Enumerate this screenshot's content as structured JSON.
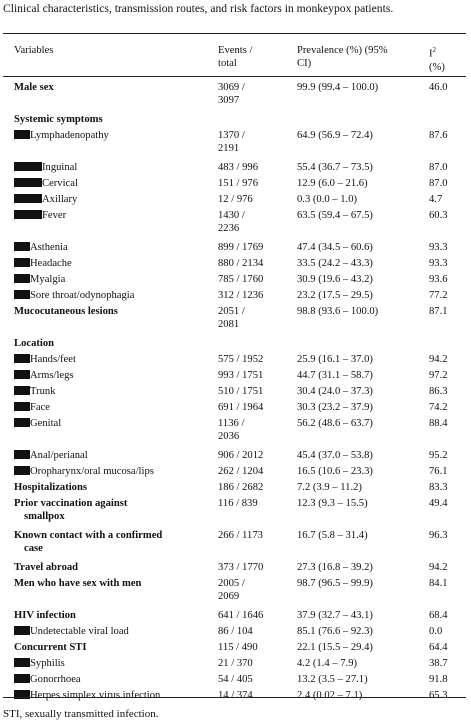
{
  "caption": "Clinical characteristics, transmission routes, and risk factors in monkeypox patients.",
  "header": {
    "variables": "Variables",
    "events_1": "Events /",
    "events_2": "total",
    "prev_1": "Prevalence (%) (95%",
    "prev_2": "CI)",
    "i2_base": "I",
    "i2_sup": "2",
    "i2_unit": "(%)"
  },
  "rows": [
    {
      "label": "Male sex",
      "events_1": "3069 /",
      "events_2": "3097",
      "prevalence": "99.9 (99.4 – 100.0)",
      "i2": "46.0",
      "style": "bold",
      "indent": 0
    },
    {
      "label": "Systemic symptoms",
      "events_1": "",
      "events_2": "",
      "prevalence": "",
      "i2": "",
      "style": "bold",
      "indent": 0
    },
    {
      "label": "Lymphadenopathy",
      "events_1": "1370 /",
      "events_2": "2191",
      "prevalence": "64.9 (56.9 – 72.4)",
      "i2": "87.6",
      "style": "normal",
      "indent": 1
    },
    {
      "label": "Inguinal",
      "events_1": "483 / 996",
      "events_2": "",
      "prevalence": "55.4 (36.7 – 73.5)",
      "i2": "87.0",
      "style": "normal",
      "indent": 2
    },
    {
      "label": "Cervical",
      "events_1": "151 / 976",
      "events_2": "",
      "prevalence": "12.9 (6.0 – 21.6)",
      "i2": "87.0",
      "style": "normal",
      "indent": 2
    },
    {
      "label": "Axillary",
      "events_1": "12 / 976",
      "events_2": "",
      "prevalence": "0.3 (0.0 – 1.0)",
      "i2": "4.7",
      "style": "normal",
      "indent": 2
    },
    {
      "label": "Fever",
      "events_1": "1430 /",
      "events_2": "2236",
      "prevalence": "63.5 (59.4 – 67.5)",
      "i2": "60.3",
      "style": "normal",
      "indent": 2
    },
    {
      "label": "Asthenia",
      "events_1": "899 / 1769",
      "events_2": "",
      "prevalence": "47.4 (34.5 – 60.6)",
      "i2": "93.3",
      "style": "normal",
      "indent": 1
    },
    {
      "label": "Headache",
      "events_1": "880 / 2134",
      "events_2": "",
      "prevalence": "33.5 (24.2 – 43.3)",
      "i2": "93.3",
      "style": "normal",
      "indent": 1
    },
    {
      "label": "Myalgia",
      "events_1": "785 / 1760",
      "events_2": "",
      "prevalence": "30.9 (19.6 – 43.2)",
      "i2": "93.6",
      "style": "normal",
      "indent": 1
    },
    {
      "label": "Sore throat/odynophagia",
      "events_1": "312 / 1236",
      "events_2": "",
      "prevalence": "23.2 (17.5 – 29.5)",
      "i2": "77.2",
      "style": "normal",
      "indent": 1
    },
    {
      "label": "Mucocutaneous lesions",
      "events_1": "2051 /",
      "events_2": "2081",
      "prevalence": "98.8 (93.6 – 100.0)",
      "i2": "87.1",
      "style": "bold",
      "indent": 0
    },
    {
      "label": "Location",
      "events_1": "",
      "events_2": "",
      "prevalence": "",
      "i2": "",
      "style": "bold",
      "indent": 0
    },
    {
      "label": "Hands/feet",
      "events_1": "575 / 1952",
      "events_2": "",
      "prevalence": "25.9 (16.1 – 37.0)",
      "i2": "94.2",
      "style": "normal",
      "indent": 1
    },
    {
      "label": "Arms/legs",
      "events_1": "993 / 1751",
      "events_2": "",
      "prevalence": "44.7 (31.1 – 58.7)",
      "i2": "97.2",
      "style": "normal",
      "indent": 1
    },
    {
      "label": "Trunk",
      "events_1": "510 / 1751",
      "events_2": "",
      "prevalence": "30.4 (24.0 – 37.3)",
      "i2": "86.3",
      "style": "normal",
      "indent": 1
    },
    {
      "label": "Face",
      "events_1": "691 / 1964",
      "events_2": "",
      "prevalence": "30.3 (23.2 – 37.9)",
      "i2": "74.2",
      "style": "normal",
      "indent": 1
    },
    {
      "label": "Genital",
      "events_1": "1136 /",
      "events_2": "2036",
      "prevalence": "56.2 (48.6 – 63.7)",
      "i2": "88.4",
      "style": "normal",
      "indent": 1
    },
    {
      "label": "Anal/perianal",
      "events_1": "906 / 2012",
      "events_2": "",
      "prevalence": "45.4 (37.0 – 53.8)",
      "i2": "95.2",
      "style": "normal",
      "indent": 1
    },
    {
      "label": "Oropharynx/oral mucosa/lips",
      "events_1": "262 / 1204",
      "events_2": "",
      "prevalence": "16.5 (10.6 – 23.3)",
      "i2": "76.1",
      "style": "normal",
      "indent": 1
    },
    {
      "label": "Hospitalizations",
      "events_1": "186 / 2682",
      "events_2": "",
      "prevalence": "7.2 (3.9 – 11.2)",
      "i2": "83.3",
      "style": "bold",
      "indent": 0
    },
    {
      "label": "Prior vaccination against",
      "label_2": "smallpox",
      "events_1": "116 / 839",
      "events_2": "",
      "prevalence": "12.3 (9.3 – 15.5)",
      "i2": "49.4",
      "style": "bold",
      "indent": 0
    },
    {
      "label": "Known contact with a confirmed",
      "label_2": "case",
      "events_1": "266 / 1173",
      "events_2": "",
      "prevalence": "16.7 (5.8 – 31.4)",
      "i2": "96.3",
      "style": "bold",
      "indent": 0
    },
    {
      "label": "Travel abroad",
      "events_1": "373 / 1770",
      "events_2": "",
      "prevalence": "27.3 (16.8 – 39.2)",
      "i2": "94.2",
      "style": "bold",
      "indent": 0
    },
    {
      "label": "Men who have sex with men",
      "events_1": "2005 /",
      "events_2": "2069",
      "prevalence": "98.7 (96.5 – 99.9)",
      "i2": "84.1",
      "style": "bold",
      "indent": 0
    },
    {
      "label": "HIV infection",
      "events_1": "641 / 1646",
      "events_2": "",
      "prevalence": "37.9 (32.7 – 43.1)",
      "i2": "68.4",
      "style": "bold",
      "indent": 0
    },
    {
      "label": "Undetectable viral load",
      "events_1": "86 / 104",
      "events_2": "",
      "prevalence": "85.1 (76.6 – 92.3)",
      "i2": "0.0",
      "style": "normal",
      "indent": 1
    },
    {
      "label": "Concurrent STI",
      "events_1": "115 / 490",
      "events_2": "",
      "prevalence": "22.1 (15.5 – 29.4)",
      "i2": "64.4",
      "style": "bold",
      "indent": 0
    },
    {
      "label": "Syphilis",
      "events_1": "21 / 370",
      "events_2": "",
      "prevalence": "4.2 (1.4 – 7.9)",
      "i2": "38.7",
      "style": "normal",
      "indent": 1
    },
    {
      "label": "Gonorrhoea",
      "events_1": "54 / 405",
      "events_2": "",
      "prevalence": "13.2 (3.5 – 27.1)",
      "i2": "91.8",
      "style": "normal",
      "indent": 1
    },
    {
      "label": "Herpes simplex virus infection",
      "events_1": "14 / 374",
      "events_2": "",
      "prevalence": "2.4 (0.02 – 7.1)",
      "i2": "65.3",
      "style": "normal",
      "indent": 1
    }
  ],
  "footnote": "STI, sexually transmitted infection."
}
